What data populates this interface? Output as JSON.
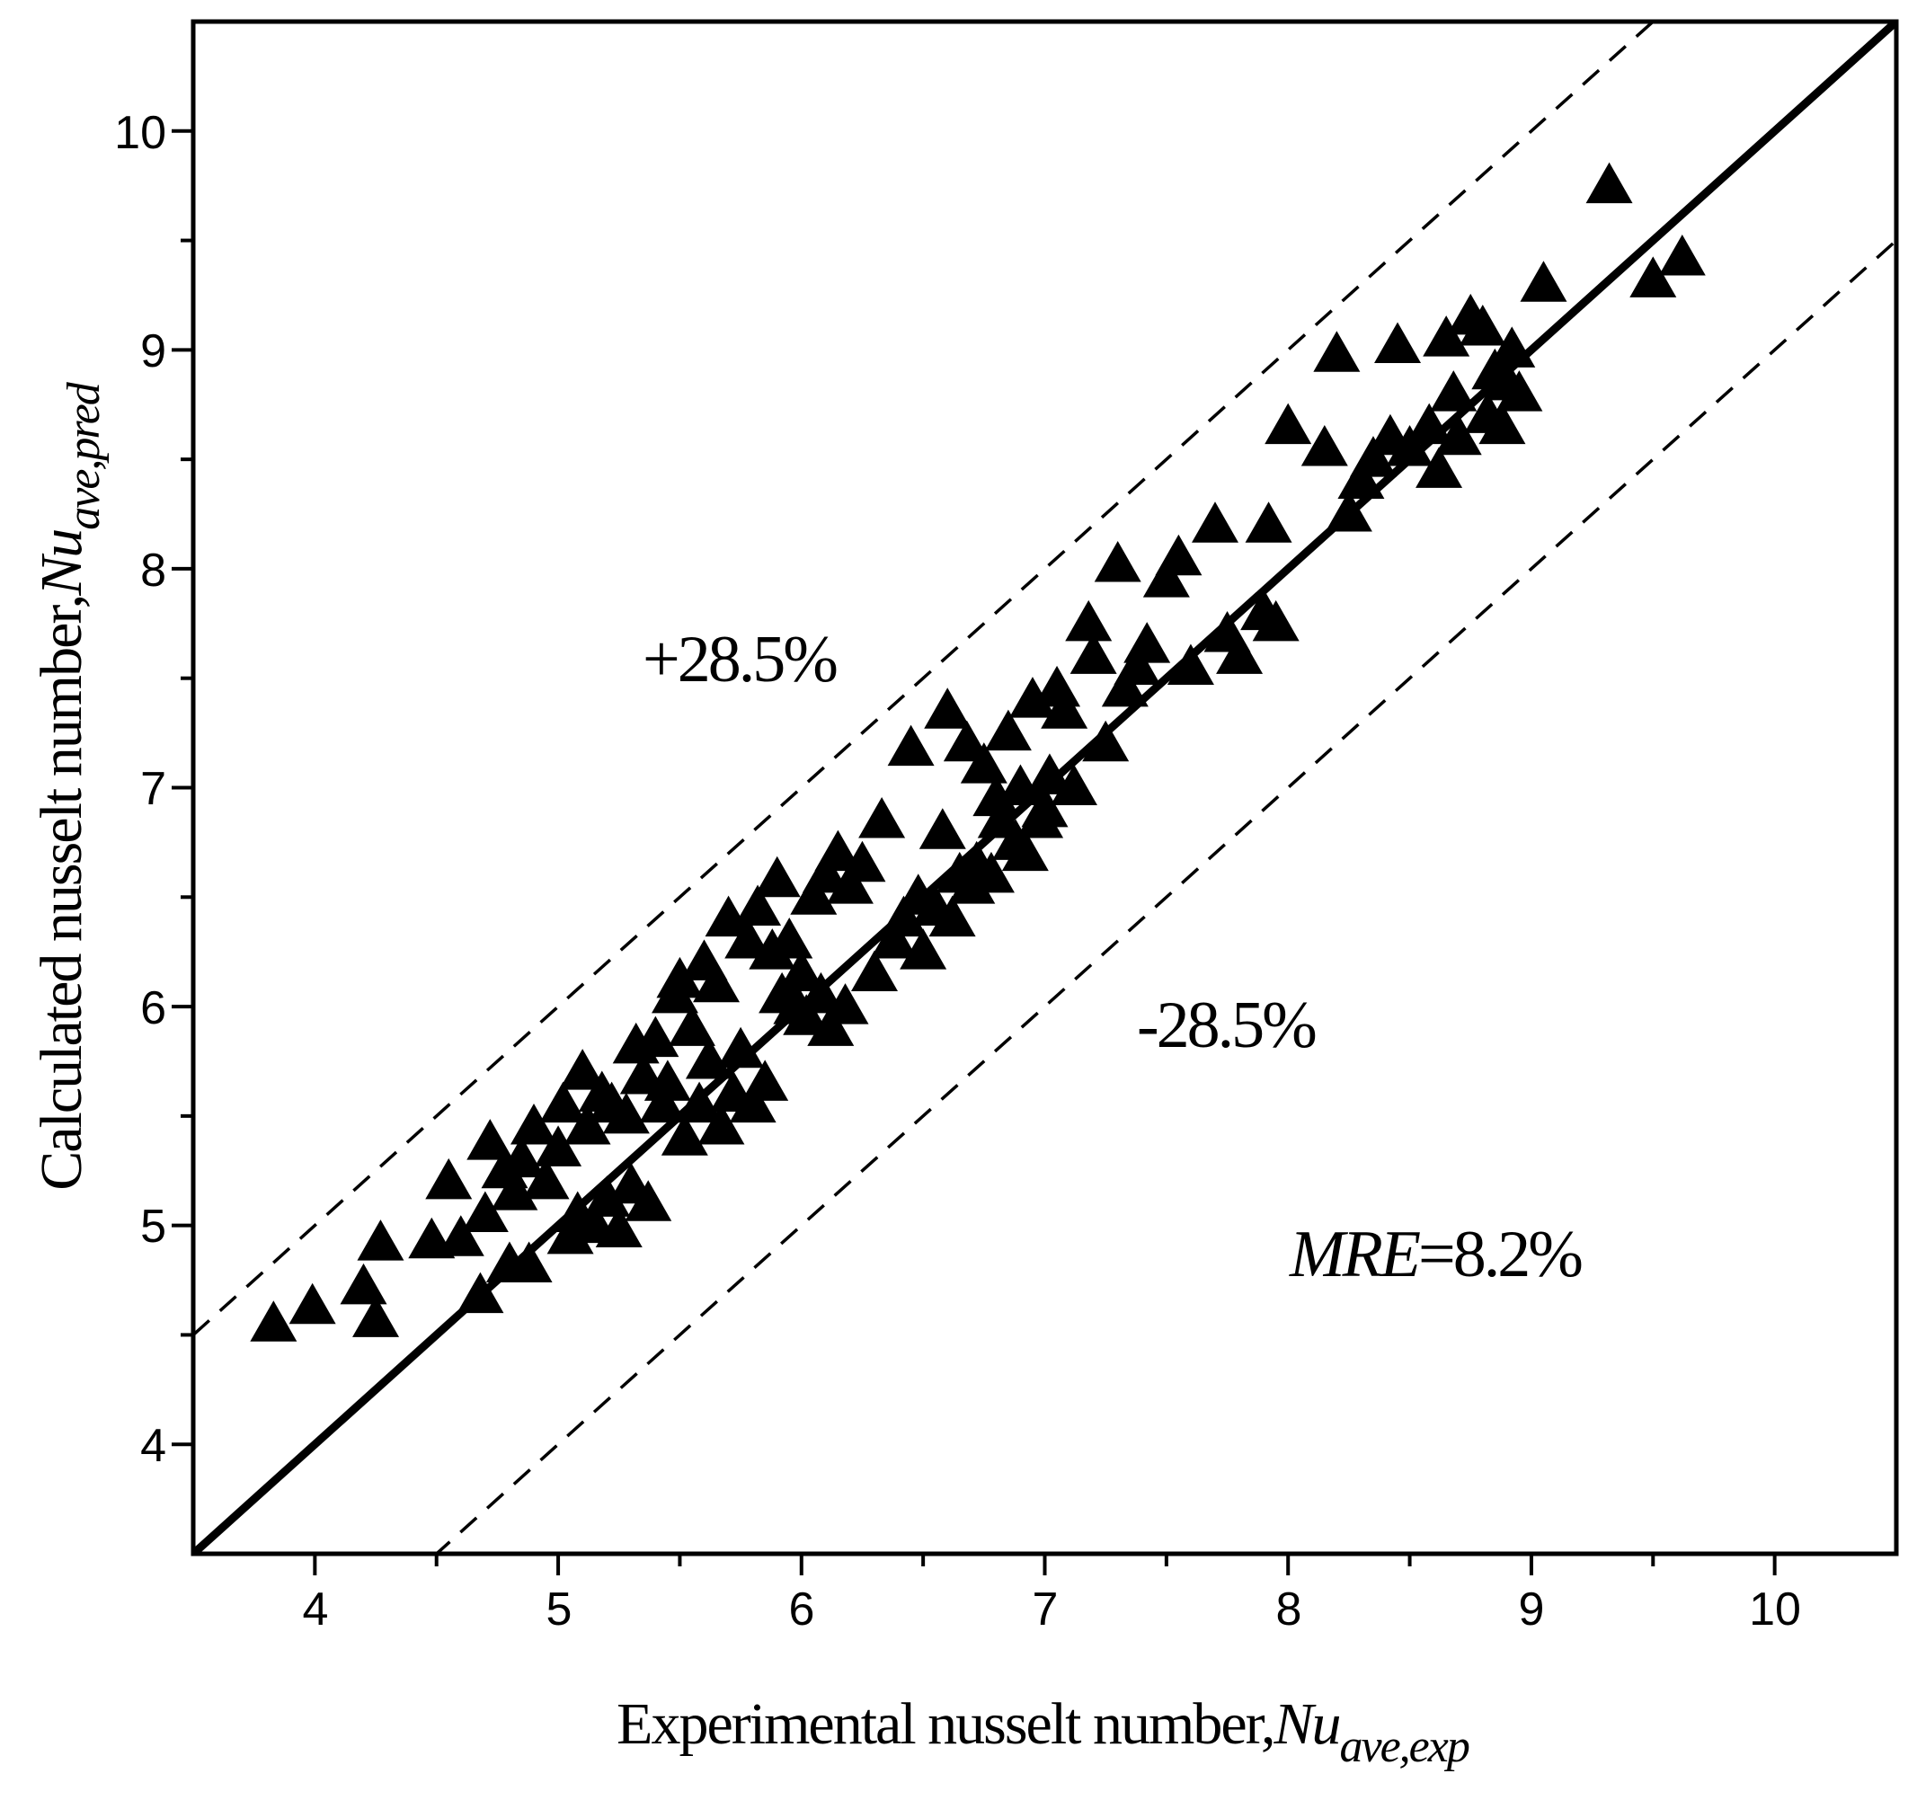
{
  "chart_data": {
    "type": "scatter",
    "xlabel": "Experimental nusselt number,",
    "xlabel_symbol": "Nu",
    "xlabel_subscript": "ave,exp",
    "ylabel": "Calculated nusselt number,",
    "ylabel_symbol": "Nu",
    "ylabel_subscript": "ave,pred",
    "xlim": [
      3.5,
      10.5
    ],
    "ylim": [
      3.5,
      10.5
    ],
    "xticks": [
      "4",
      "5",
      "6",
      "7",
      "8",
      "9",
      "10"
    ],
    "yticks": [
      "4",
      "5",
      "6",
      "7",
      "8",
      "9",
      "10"
    ],
    "marker": "filled-triangle",
    "marker_color": "#000000",
    "grid": false,
    "reference_lines": [
      {
        "name": "parity",
        "style": "solid",
        "offset": 0
      },
      {
        "name": "upper-bound",
        "style": "dashed",
        "offset": 1
      },
      {
        "name": "lower-bound",
        "style": "dashed",
        "offset": -1
      }
    ],
    "annotations": {
      "upper_label": "+28.5%",
      "lower_label": "-28.5%",
      "mre_label": "MRE",
      "mre_value": "=8.2%"
    },
    "points": [
      [
        3.83,
        4.55
      ],
      [
        3.99,
        4.63
      ],
      [
        4.2,
        4.72
      ],
      [
        4.25,
        4.57
      ],
      [
        4.27,
        4.92
      ],
      [
        4.48,
        4.93
      ],
      [
        4.55,
        5.2
      ],
      [
        4.6,
        4.94
      ],
      [
        4.68,
        4.68
      ],
      [
        4.7,
        5.05
      ],
      [
        4.72,
        5.38
      ],
      [
        4.78,
        5.25
      ],
      [
        4.8,
        4.82
      ],
      [
        4.82,
        5.15
      ],
      [
        4.85,
        5.3
      ],
      [
        4.88,
        4.82
      ],
      [
        4.9,
        5.45
      ],
      [
        4.95,
        5.2
      ],
      [
        5.0,
        5.35
      ],
      [
        5.02,
        5.55
      ],
      [
        5.05,
        4.95
      ],
      [
        5.08,
        5.05
      ],
      [
        5.1,
        5.7
      ],
      [
        5.12,
        5.45
      ],
      [
        5.15,
        5.0
      ],
      [
        5.18,
        5.6
      ],
      [
        5.2,
        5.12
      ],
      [
        5.22,
        5.55
      ],
      [
        5.25,
        4.98
      ],
      [
        5.28,
        5.5
      ],
      [
        5.3,
        5.18
      ],
      [
        5.32,
        5.82
      ],
      [
        5.35,
        5.68
      ],
      [
        5.37,
        5.1
      ],
      [
        5.4,
        5.85
      ],
      [
        5.43,
        5.55
      ],
      [
        5.45,
        5.65
      ],
      [
        5.48,
        6.05
      ],
      [
        5.5,
        6.12
      ],
      [
        5.52,
        5.4
      ],
      [
        5.55,
        5.9
      ],
      [
        5.58,
        5.55
      ],
      [
        5.6,
        6.2
      ],
      [
        5.62,
        5.75
      ],
      [
        5.65,
        6.1
      ],
      [
        5.67,
        5.45
      ],
      [
        5.7,
        6.4
      ],
      [
        5.72,
        5.6
      ],
      [
        5.75,
        5.8
      ],
      [
        5.78,
        6.3
      ],
      [
        5.8,
        5.55
      ],
      [
        5.82,
        6.45
      ],
      [
        5.85,
        5.65
      ],
      [
        5.88,
        6.25
      ],
      [
        5.9,
        6.58
      ],
      [
        5.92,
        6.05
      ],
      [
        5.95,
        6.3
      ],
      [
        5.98,
        6.0
      ],
      [
        6.0,
        6.15
      ],
      [
        6.02,
        5.95
      ],
      [
        6.05,
        6.5
      ],
      [
        6.08,
        6.05
      ],
      [
        6.1,
        6.6
      ],
      [
        6.12,
        5.9
      ],
      [
        6.15,
        6.7
      ],
      [
        6.18,
        6.0
      ],
      [
        6.2,
        6.55
      ],
      [
        6.25,
        6.65
      ],
      [
        6.3,
        6.15
      ],
      [
        6.33,
        6.85
      ],
      [
        6.38,
        6.3
      ],
      [
        6.42,
        6.4
      ],
      [
        6.45,
        7.18
      ],
      [
        6.48,
        6.5
      ],
      [
        6.5,
        6.25
      ],
      [
        6.55,
        6.45
      ],
      [
        6.58,
        6.8
      ],
      [
        6.6,
        7.35
      ],
      [
        6.62,
        6.4
      ],
      [
        6.65,
        6.6
      ],
      [
        6.68,
        7.2
      ],
      [
        6.7,
        6.55
      ],
      [
        6.72,
        6.65
      ],
      [
        6.75,
        7.1
      ],
      [
        6.78,
        6.6
      ],
      [
        6.8,
        6.95
      ],
      [
        6.82,
        6.85
      ],
      [
        6.85,
        7.25
      ],
      [
        6.88,
        6.75
      ],
      [
        6.9,
        7.0
      ],
      [
        6.92,
        6.7
      ],
      [
        6.95,
        7.4
      ],
      [
        6.98,
        6.85
      ],
      [
        7.0,
        6.9
      ],
      [
        7.02,
        7.05
      ],
      [
        7.05,
        7.45
      ],
      [
        7.08,
        7.35
      ],
      [
        7.12,
        7.0
      ],
      [
        7.18,
        7.75
      ],
      [
        7.2,
        7.6
      ],
      [
        7.25,
        7.2
      ],
      [
        7.3,
        8.02
      ],
      [
        7.33,
        7.45
      ],
      [
        7.38,
        7.55
      ],
      [
        7.42,
        7.65
      ],
      [
        7.5,
        7.95
      ],
      [
        7.55,
        8.05
      ],
      [
        7.6,
        7.55
      ],
      [
        7.7,
        8.2
      ],
      [
        7.75,
        7.7
      ],
      [
        7.8,
        7.6
      ],
      [
        7.9,
        7.8
      ],
      [
        7.92,
        8.2
      ],
      [
        7.95,
        7.75
      ],
      [
        8.0,
        8.65
      ],
      [
        8.15,
        8.55
      ],
      [
        8.2,
        8.98
      ],
      [
        8.25,
        8.25
      ],
      [
        8.3,
        8.4
      ],
      [
        8.35,
        8.5
      ],
      [
        8.42,
        8.6
      ],
      [
        8.45,
        9.02
      ],
      [
        8.5,
        8.55
      ],
      [
        8.58,
        8.65
      ],
      [
        8.62,
        8.45
      ],
      [
        8.65,
        9.05
      ],
      [
        8.68,
        8.8
      ],
      [
        8.7,
        8.6
      ],
      [
        8.75,
        9.15
      ],
      [
        8.8,
        9.1
      ],
      [
        8.82,
        8.7
      ],
      [
        8.85,
        8.9
      ],
      [
        8.88,
        8.65
      ],
      [
        8.9,
        8.85
      ],
      [
        8.92,
        9.0
      ],
      [
        8.95,
        8.8
      ],
      [
        9.05,
        9.3
      ],
      [
        9.32,
        9.75
      ],
      [
        9.5,
        9.32
      ],
      [
        9.62,
        9.42
      ]
    ]
  }
}
